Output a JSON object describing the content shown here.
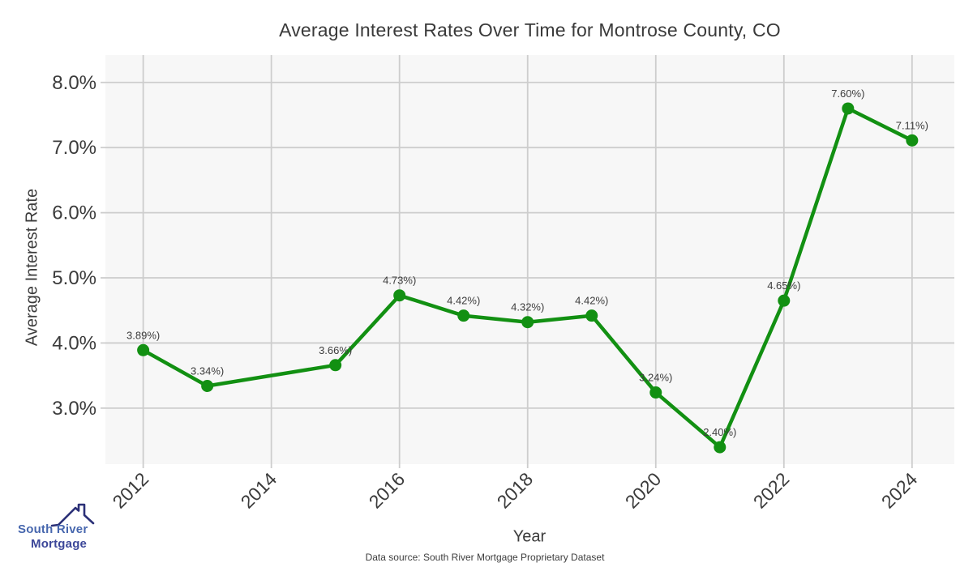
{
  "header": {
    "title": "Average Interest Rates Over Time for Montrose County, CO"
  },
  "footer": {
    "text": "Data source: South River Mortgage Proprietary Dataset"
  },
  "logo": {
    "line1": "South River",
    "line2": "Mortgage",
    "icon": "house-roof-icon",
    "colors": {
      "line1": "#4767ae",
      "line2": "#3c4799",
      "roof": "#2b3077"
    }
  },
  "chart_data": {
    "type": "line",
    "title": "Average Interest Rates Over Time for Montrose County, CO",
    "xlabel": "Year",
    "ylabel": "Average Interest Rate",
    "x": [
      2012,
      2013,
      2015,
      2016,
      2017,
      2018,
      2019,
      2020,
      2021,
      2022,
      2023,
      2024
    ],
    "y": [
      3.89,
      3.34,
      3.66,
      4.73,
      4.42,
      4.32,
      4.42,
      3.24,
      2.4,
      4.65,
      7.6,
      7.11
    ],
    "point_labels": [
      "3.89%)",
      "3.34%)",
      "3.66%)",
      "4.73%)",
      "4.42%)",
      "4.32%)",
      "4.42%)",
      "3.24%)",
      "2.40%)",
      "4.65%)",
      "7.60%)",
      "7.11%)"
    ],
    "x_ticks": [
      2012,
      2014,
      2016,
      2018,
      2020,
      2022,
      2024
    ],
    "x_tick_labels": [
      "2012",
      "2014",
      "2016",
      "2018",
      "2020",
      "2022",
      "2024"
    ],
    "y_ticks": [
      3,
      4,
      5,
      6,
      7,
      8
    ],
    "y_tick_labels": [
      "3.0%",
      "4.0%",
      "5.0%",
      "6.0%",
      "7.0%",
      "8.0%"
    ],
    "xlim": [
      2011.41,
      2024.66
    ],
    "ylim": [
      2.14,
      8.42
    ],
    "grid": true,
    "legend": "none",
    "line_color": "#129012",
    "marker": "circle",
    "plot_bg": "#f7f7f7",
    "grid_color": "#cdcdcd",
    "tick_color": "#3b3b3b",
    "point_label_color": "#3d3d3d"
  }
}
